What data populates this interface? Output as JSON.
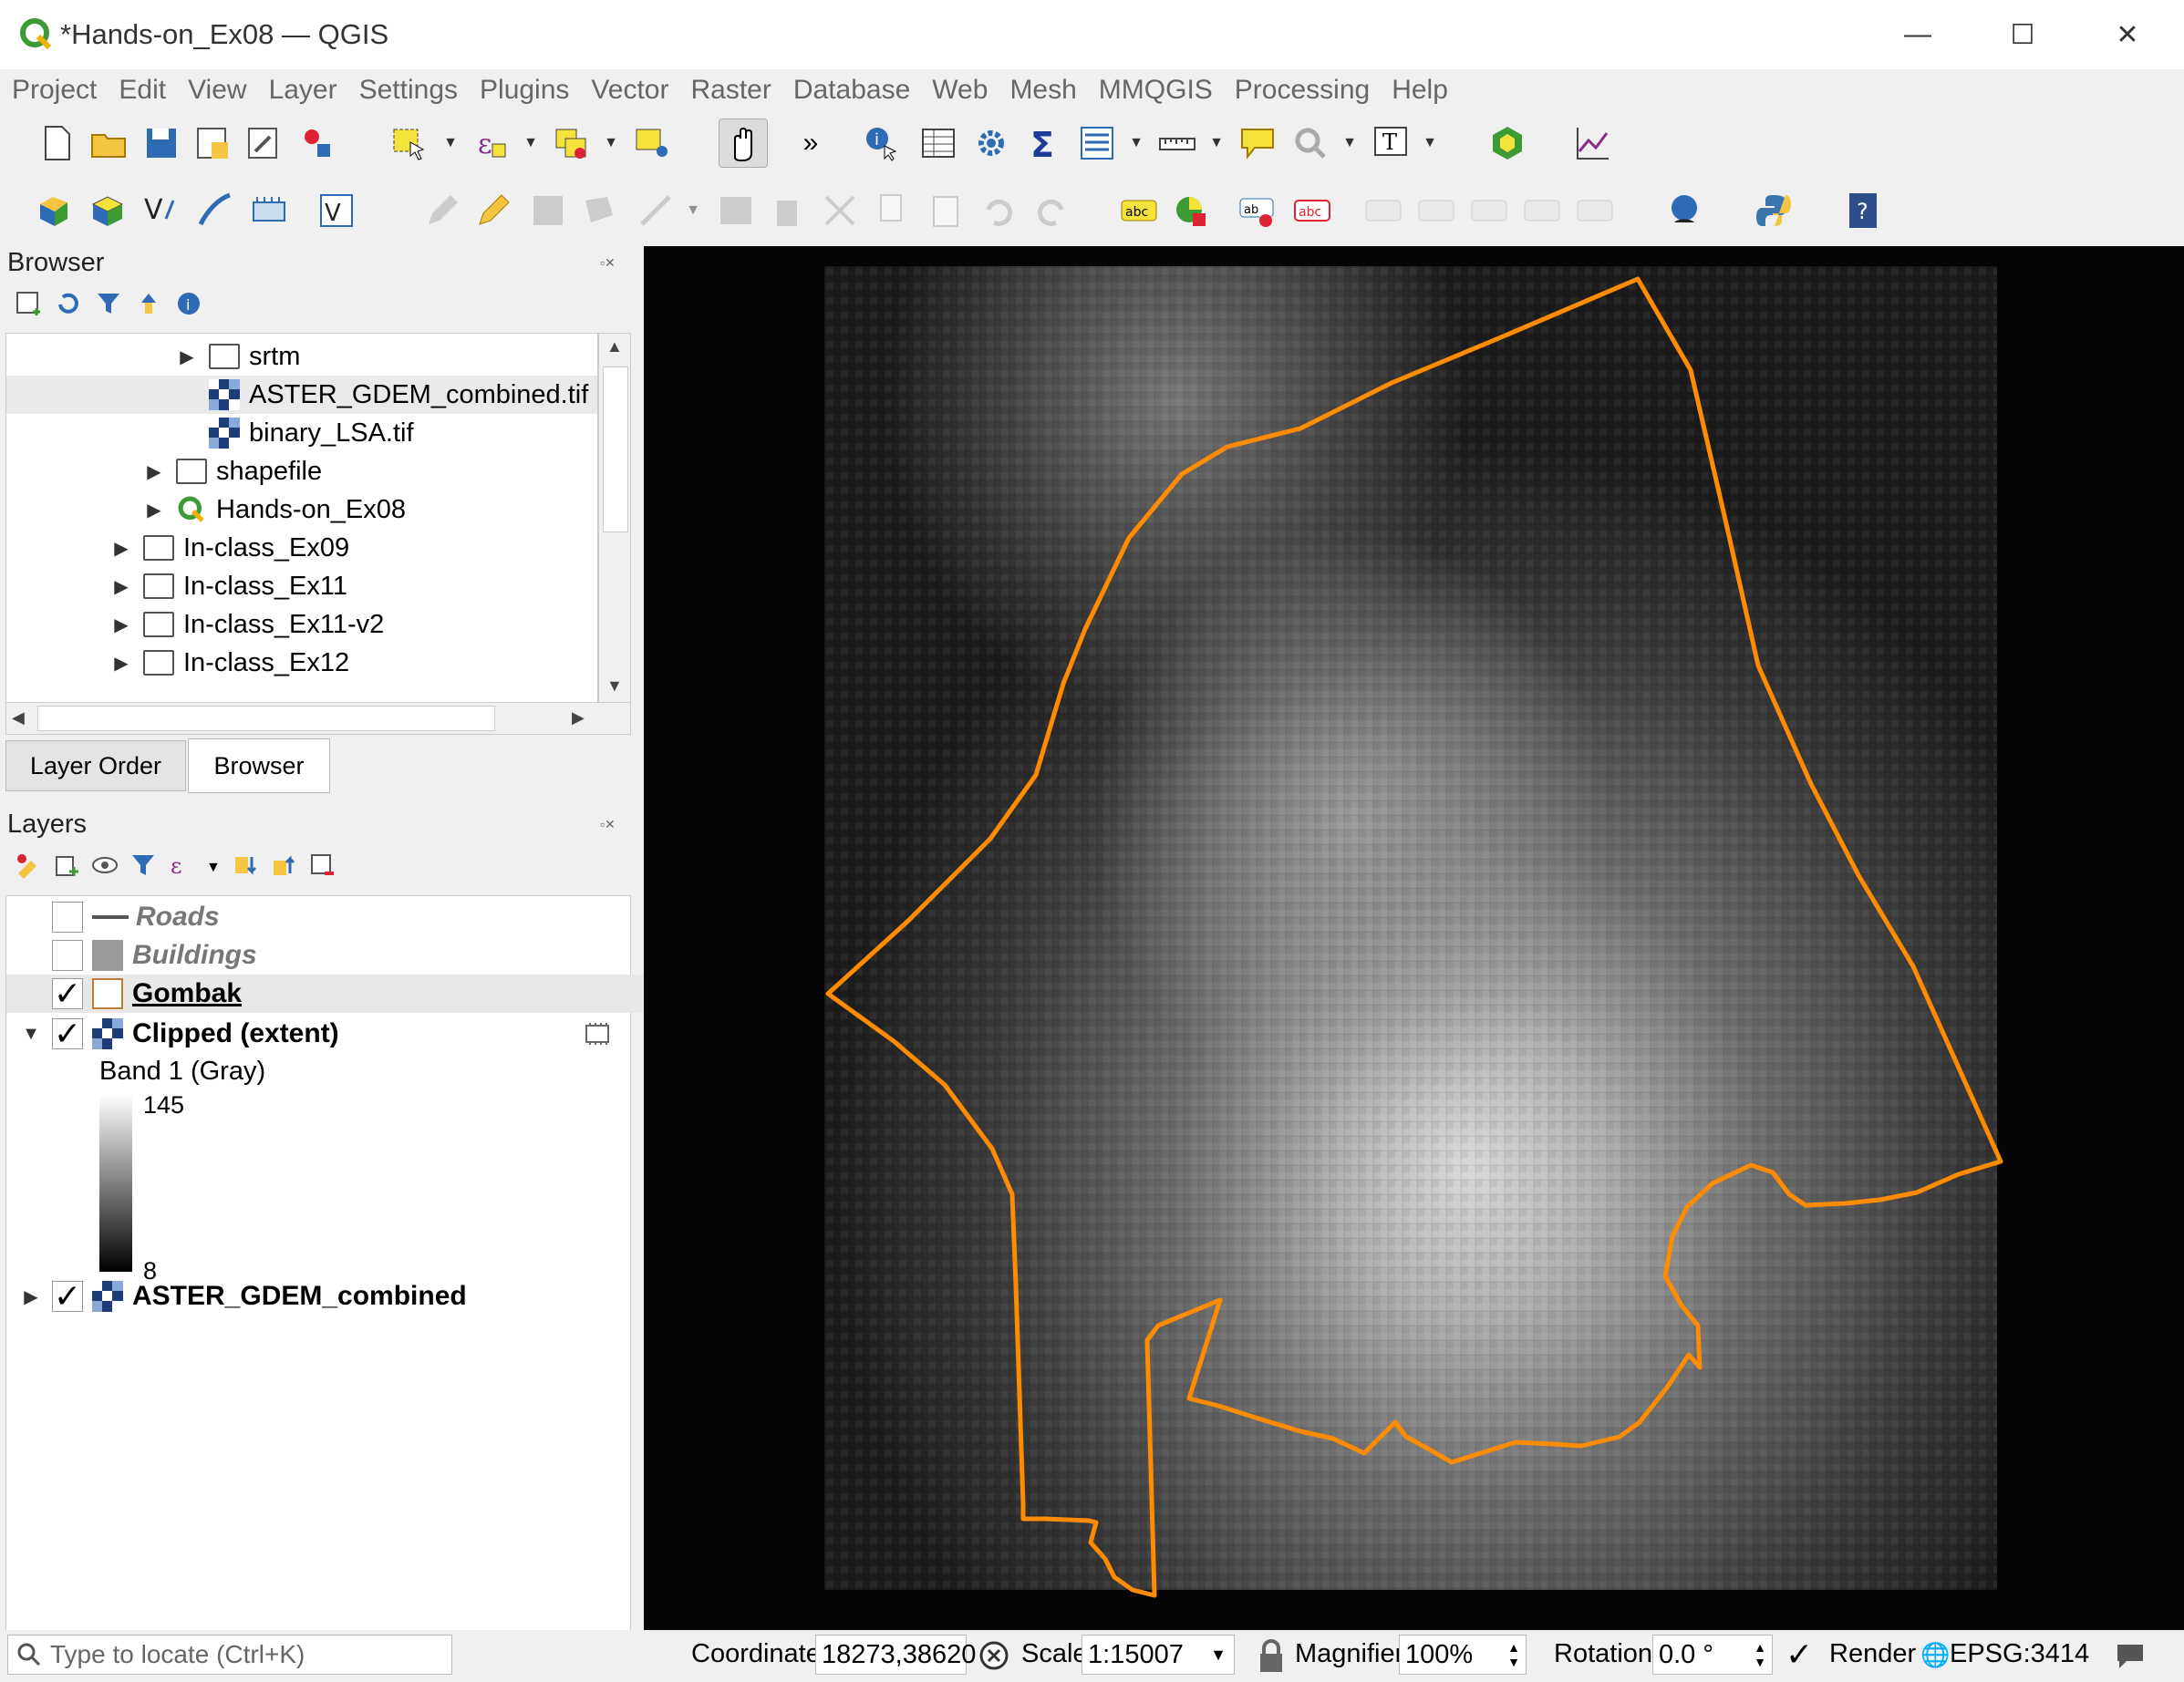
{
  "window": {
    "title": "*Hands-on_Ex08 — QGIS",
    "controls": [
      "—",
      "☐",
      "✕"
    ]
  },
  "menu": [
    "Project",
    "Edit",
    "View",
    "Layer",
    "Settings",
    "Plugins",
    "Vector",
    "Raster",
    "Database",
    "Web",
    "Mesh",
    "MMQGIS",
    "Processing",
    "Help"
  ],
  "browser": {
    "title": "Browser",
    "items": [
      {
        "label": "srtm",
        "type": "folder",
        "expand": "▶"
      },
      {
        "label": "ASTER_GDEM_combined.tif",
        "type": "raster"
      },
      {
        "label": "binary_LSA.tif",
        "type": "raster"
      },
      {
        "label": "shapefile",
        "type": "folder",
        "expand": "▶"
      },
      {
        "label": "Hands-on_Ex08",
        "type": "project",
        "expand": "▶"
      },
      {
        "label": "In-class_Ex09",
        "type": "folder",
        "expand": "▶"
      },
      {
        "label": "In-class_Ex11",
        "type": "folder",
        "expand": "▶"
      },
      {
        "label": "In-class_Ex11-v2",
        "type": "folder",
        "expand": "▶"
      },
      {
        "label": "In-class_Ex12",
        "type": "folder",
        "expand": "▶"
      }
    ]
  },
  "tabs": [
    "Layer Order",
    "Browser"
  ],
  "layers": {
    "title": "Layers",
    "items": [
      {
        "label": "Roads",
        "checked": false,
        "check_mark": ""
      },
      {
        "label": "Buildings",
        "checked": false,
        "check_mark": ""
      },
      {
        "label": "Gombak",
        "checked": true,
        "check_mark": "✓"
      },
      {
        "label": "Clipped (extent)",
        "checked": true,
        "check_mark": "✓",
        "expand": "▼"
      },
      {
        "label": "ASTER_GDEM_combined",
        "checked": true,
        "check_mark": "✓",
        "expand": "▶"
      }
    ],
    "legend": {
      "band": "Band 1 (Gray)",
      "max": "145",
      "min": "8"
    }
  },
  "statusbar": {
    "search_placeholder": "Type to locate (Ctrl+K)",
    "coordinate_label": "Coordinate",
    "coordinate_value": "18273,38620",
    "scale_label": "Scale",
    "scale_value": "1:15007",
    "magnifier_label": "Magnifier",
    "magnifier_value": "100%",
    "rotation_label": "Rotation",
    "rotation_value": "0.0 °",
    "render_label": "Render",
    "render_mark": "✓",
    "crs": "EPSG:3414"
  },
  "colors": {
    "boundary": "#ff8c00",
    "qgis_green": "#3d9b35"
  }
}
